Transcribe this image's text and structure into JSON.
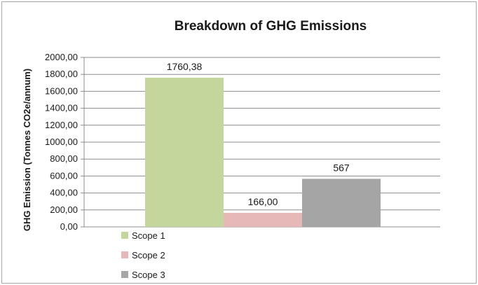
{
  "chart_data": {
    "type": "bar",
    "title": "Breakdown of GHG Emissions",
    "ylabel": "GHG Emission (Tonnes CO2e/annum)",
    "xlabel": "",
    "ylim": [
      0,
      2000
    ],
    "yticks": [
      "0,00",
      "200,00",
      "400,00",
      "600,00",
      "800,00",
      "1000,00",
      "1200,00",
      "1400,00",
      "1600,00",
      "1800,00",
      "2000,00"
    ],
    "grid": true,
    "legend_position": "bottom-left",
    "series": [
      {
        "name": "Scope 1",
        "value": 1760.38,
        "label": "1760,38",
        "color": "#c3d69b"
      },
      {
        "name": "Scope 2",
        "value": 166.0,
        "label": "166,00",
        "color": "#e6b9b8"
      },
      {
        "name": "Scope 3",
        "value": 567,
        "label": "567",
        "color": "#a5a5a5"
      }
    ]
  }
}
